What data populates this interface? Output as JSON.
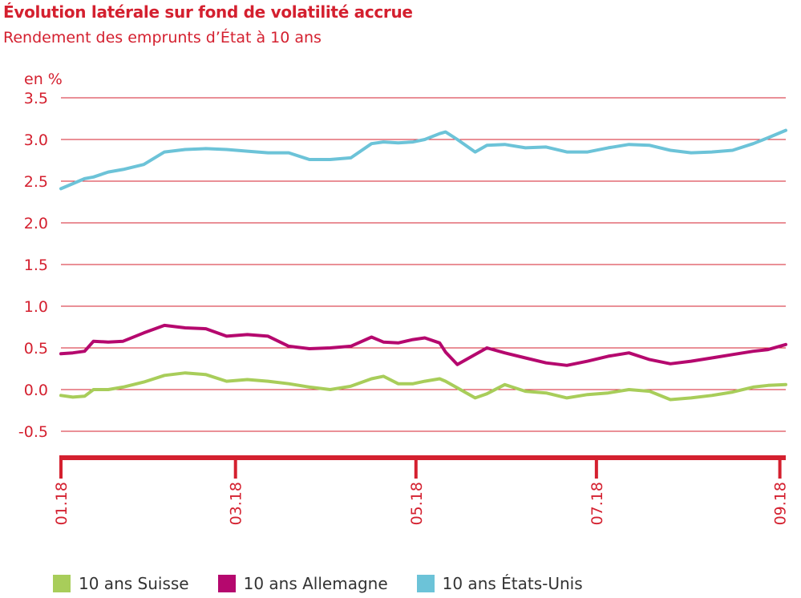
{
  "title": "Évolution latérale sur fond de volatilité accrue",
  "subtitle": "Rendement des emprunts d’État à 10 ans",
  "colors": {
    "accent": "#d4202f",
    "gridline": "#d4202f",
    "suisse": "#a8cd5a",
    "allemagne": "#b5086e",
    "etats_unis": "#6cc3d8"
  },
  "chart_data": {
    "type": "line",
    "title": "Évolution latérale sur fond de volatilité accrue",
    "subtitle": "Rendement des emprunts d’État à 10 ans",
    "ylabel": "en %",
    "ylim": [
      -0.5,
      3.5
    ],
    "yticks": [
      "3.5",
      "3.0",
      "2.5",
      "2.0",
      "1.5",
      "1.0",
      "0.5",
      "0.0",
      "-0.5"
    ],
    "ytick_values": [
      3.5,
      3.0,
      2.5,
      2.0,
      1.5,
      1.0,
      0.5,
      0.0,
      -0.5
    ],
    "xlim": [
      "2018-01-01",
      "2018-09-03"
    ],
    "xticks": [
      "01.18",
      "03.18",
      "05.18",
      "07.18",
      "09.18"
    ],
    "xtick_dates": [
      "2018-01-01",
      "2018-03-01",
      "2018-05-01",
      "2018-07-01",
      "2018-09-01"
    ],
    "grid": true,
    "legend_position": "bottom",
    "series": [
      {
        "name": "10 ans Suisse",
        "color": "#a8cd5a",
        "x": [
          "2018-01-01",
          "2018-01-05",
          "2018-01-09",
          "2018-01-12",
          "2018-01-17",
          "2018-01-22",
          "2018-01-29",
          "2018-02-05",
          "2018-02-12",
          "2018-02-19",
          "2018-02-26",
          "2018-03-05",
          "2018-03-12",
          "2018-03-19",
          "2018-03-26",
          "2018-04-02",
          "2018-04-09",
          "2018-04-16",
          "2018-04-20",
          "2018-04-25",
          "2018-04-30",
          "2018-05-04",
          "2018-05-09",
          "2018-05-11",
          "2018-05-15",
          "2018-05-21",
          "2018-05-25",
          "2018-05-31",
          "2018-06-07",
          "2018-06-14",
          "2018-06-21",
          "2018-06-28",
          "2018-07-05",
          "2018-07-12",
          "2018-07-19",
          "2018-07-26",
          "2018-08-02",
          "2018-08-09",
          "2018-08-16",
          "2018-08-23",
          "2018-08-28",
          "2018-09-03"
        ],
        "y": [
          -0.07,
          -0.09,
          -0.08,
          0.0,
          0.0,
          0.03,
          0.09,
          0.17,
          0.2,
          0.18,
          0.1,
          0.12,
          0.1,
          0.07,
          0.03,
          0.0,
          0.04,
          0.13,
          0.16,
          0.07,
          0.07,
          0.1,
          0.13,
          0.1,
          0.02,
          -0.1,
          -0.05,
          0.06,
          -0.02,
          -0.04,
          -0.1,
          -0.06,
          -0.04,
          0.0,
          -0.02,
          -0.12,
          -0.1,
          -0.07,
          -0.03,
          0.03,
          0.05,
          0.06
        ]
      },
      {
        "name": "10 ans Allemagne",
        "color": "#b5086e",
        "x": [
          "2018-01-01",
          "2018-01-05",
          "2018-01-09",
          "2018-01-12",
          "2018-01-17",
          "2018-01-22",
          "2018-01-29",
          "2018-02-05",
          "2018-02-12",
          "2018-02-19",
          "2018-02-26",
          "2018-03-05",
          "2018-03-12",
          "2018-03-19",
          "2018-03-26",
          "2018-04-02",
          "2018-04-09",
          "2018-04-16",
          "2018-04-20",
          "2018-04-25",
          "2018-04-30",
          "2018-05-04",
          "2018-05-09",
          "2018-05-11",
          "2018-05-15",
          "2018-05-21",
          "2018-05-25",
          "2018-05-31",
          "2018-06-07",
          "2018-06-14",
          "2018-06-21",
          "2018-06-28",
          "2018-07-05",
          "2018-07-12",
          "2018-07-19",
          "2018-07-26",
          "2018-08-02",
          "2018-08-09",
          "2018-08-16",
          "2018-08-23",
          "2018-08-28",
          "2018-09-03"
        ],
        "y": [
          0.43,
          0.44,
          0.46,
          0.58,
          0.57,
          0.58,
          0.68,
          0.77,
          0.74,
          0.73,
          0.64,
          0.66,
          0.64,
          0.52,
          0.49,
          0.5,
          0.52,
          0.63,
          0.57,
          0.56,
          0.6,
          0.62,
          0.56,
          0.45,
          0.3,
          0.42,
          0.5,
          0.44,
          0.38,
          0.32,
          0.29,
          0.34,
          0.4,
          0.44,
          0.36,
          0.31,
          0.34,
          0.38,
          0.42,
          0.46,
          0.48,
          0.54
        ]
      },
      {
        "name": "10 ans États-Unis",
        "color": "#6cc3d8",
        "x": [
          "2018-01-01",
          "2018-01-05",
          "2018-01-09",
          "2018-01-12",
          "2018-01-17",
          "2018-01-22",
          "2018-01-29",
          "2018-02-05",
          "2018-02-12",
          "2018-02-19",
          "2018-02-26",
          "2018-03-05",
          "2018-03-12",
          "2018-03-19",
          "2018-03-26",
          "2018-04-02",
          "2018-04-09",
          "2018-04-16",
          "2018-04-20",
          "2018-04-25",
          "2018-04-30",
          "2018-05-04",
          "2018-05-09",
          "2018-05-11",
          "2018-05-15",
          "2018-05-21",
          "2018-05-25",
          "2018-05-31",
          "2018-06-07",
          "2018-06-14",
          "2018-06-21",
          "2018-06-28",
          "2018-07-05",
          "2018-07-12",
          "2018-07-19",
          "2018-07-26",
          "2018-08-02",
          "2018-08-09",
          "2018-08-16",
          "2018-08-23",
          "2018-08-28",
          "2018-09-03"
        ],
        "y": [
          2.41,
          2.47,
          2.53,
          2.55,
          2.61,
          2.64,
          2.7,
          2.85,
          2.88,
          2.89,
          2.88,
          2.86,
          2.84,
          2.84,
          2.76,
          2.76,
          2.78,
          2.95,
          2.97,
          2.96,
          2.97,
          3.0,
          3.07,
          3.09,
          3.0,
          2.85,
          2.93,
          2.94,
          2.9,
          2.91,
          2.85,
          2.85,
          2.9,
          2.94,
          2.93,
          2.87,
          2.84,
          2.85,
          2.87,
          2.95,
          3.02,
          3.11
        ]
      }
    ]
  }
}
